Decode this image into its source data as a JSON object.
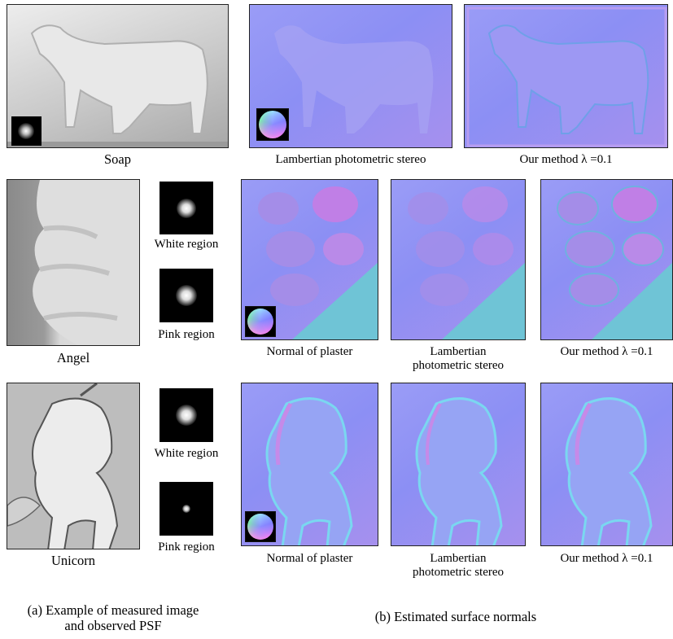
{
  "rows": {
    "soap": {
      "label": "Soap",
      "captions": [
        "Lambertian photometric stereo",
        "Our method λ =0.1"
      ]
    },
    "angel": {
      "label": "Angel",
      "psf_labels": [
        "White region",
        "Pink region"
      ],
      "captions": [
        "Normal of plaster",
        "Lambertian\nphotometric stereo",
        "Our method λ =0.1"
      ]
    },
    "unicorn": {
      "label": "Unicorn",
      "psf_labels": [
        "White region",
        "Pink region"
      ],
      "captions": [
        "Normal of plaster",
        "Lambertian\nphotometric stereo",
        "Our method λ =0.1"
      ]
    }
  },
  "subcaptions": {
    "a": "(a) Example of measured image\nand observed PSF",
    "b": "(b) Estimated surface normals"
  }
}
